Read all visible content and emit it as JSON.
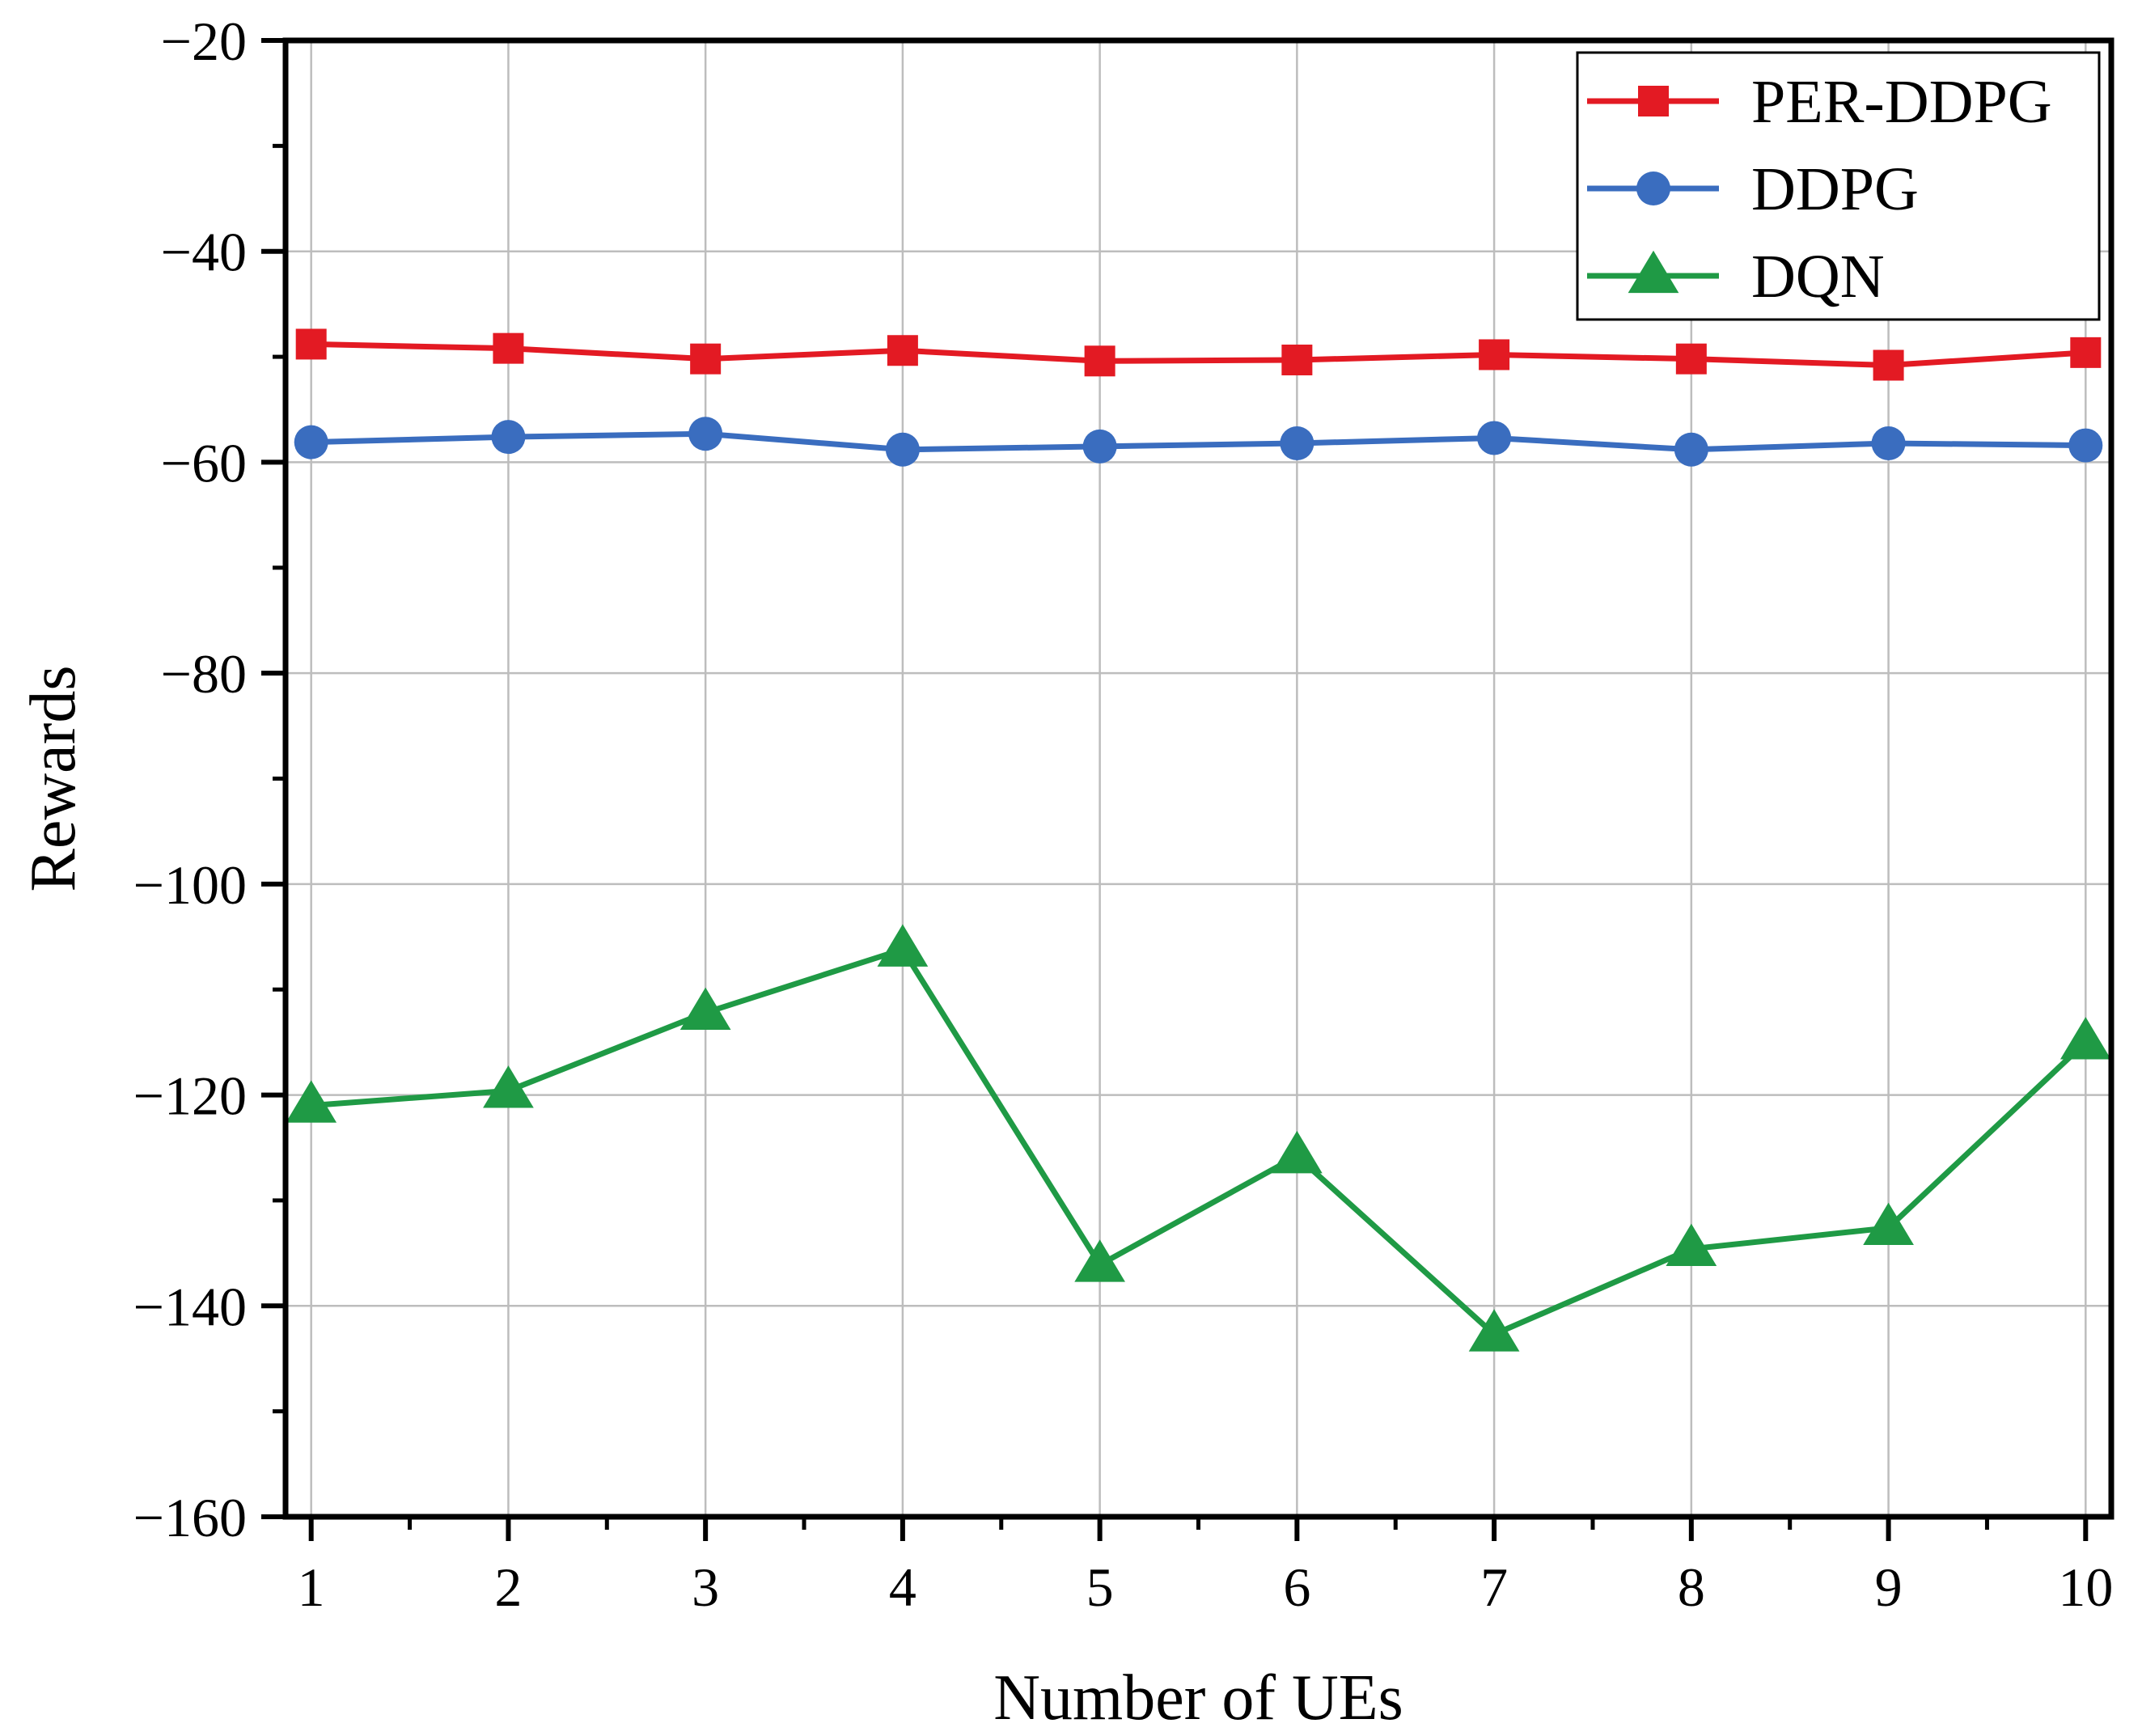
{
  "chart_data": {
    "type": "line",
    "title": "",
    "xlabel": "Number of UEs",
    "ylabel": "Rewards",
    "x": [
      1,
      2,
      3,
      4,
      5,
      6,
      7,
      8,
      9,
      10
    ],
    "xtick_labels": [
      "1",
      "2",
      "3",
      "4",
      "5",
      "6",
      "7",
      "8",
      "9",
      "10"
    ],
    "xlim": [
      0.87,
      10.13
    ],
    "ylim": [
      -160,
      -20
    ],
    "ytick_values": [
      -20,
      -40,
      -60,
      -80,
      -100,
      -120,
      -140,
      -160
    ],
    "ytick_labels": [
      "−20",
      "−40",
      "−60",
      "−80",
      "−100",
      "−120",
      "−140",
      "−160"
    ],
    "grid": true,
    "legend_position": "top-right",
    "series": [
      {
        "name": "PER-DDPG",
        "color": "#e31a23",
        "marker": "square",
        "values": [
          -48.8,
          -49.2,
          -50.2,
          -49.4,
          -50.4,
          -50.3,
          -49.8,
          -50.2,
          -50.8,
          -49.6
        ]
      },
      {
        "name": "DDPG",
        "color": "#3a6dbf",
        "marker": "circle",
        "values": [
          -58.1,
          -57.6,
          -57.3,
          -58.8,
          -58.5,
          -58.2,
          -57.7,
          -58.8,
          -58.2,
          -58.4
        ]
      },
      {
        "name": "DQN",
        "color": "#1f9a45",
        "marker": "triangle",
        "values": [
          -121.0,
          -119.6,
          -112.2,
          -106.2,
          -136.1,
          -125.8,
          -142.7,
          -134.6,
          -132.6,
          -115.0
        ]
      }
    ]
  }
}
